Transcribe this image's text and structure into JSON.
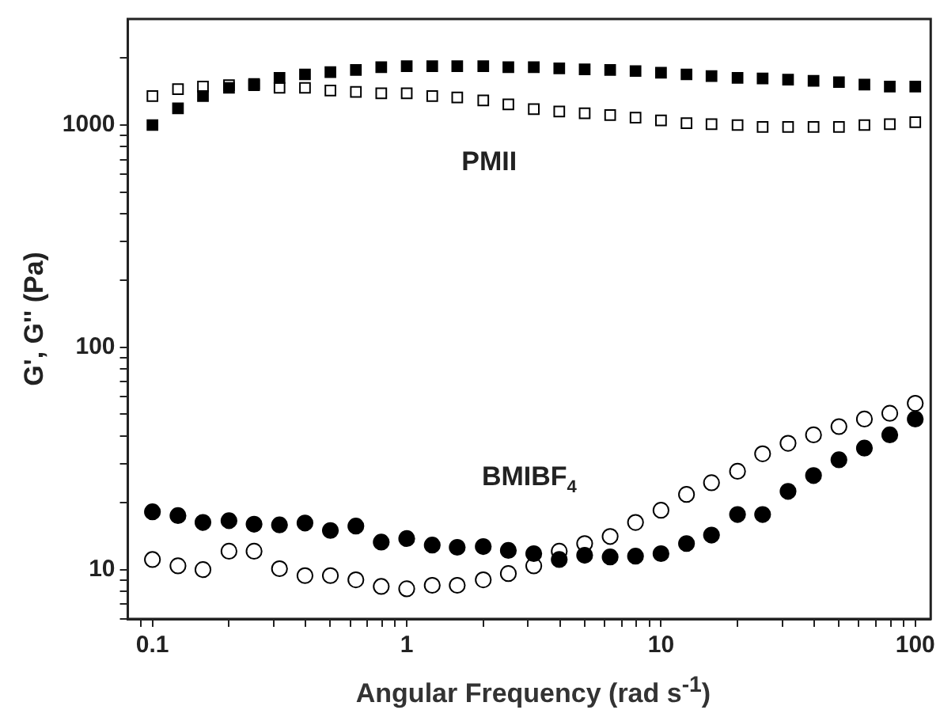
{
  "chart_data": {
    "type": "scatter",
    "xlabel": "Angular Frequency (rad s$^{-1}$)",
    "ylabel": "G', G'' (Pa)",
    "log": "xy",
    "grid": false,
    "legend": false,
    "xlim": [
      0.08,
      115
    ],
    "ylim": [
      6,
      3000
    ],
    "xticks": [
      {
        "value": 0.09,
        "label": null
      },
      0.1,
      {
        "value": 0.2,
        "label": null
      },
      {
        "value": 0.3,
        "label": null
      },
      {
        "value": 0.4,
        "label": null
      },
      {
        "value": 0.5,
        "label": null
      },
      {
        "value": 0.6,
        "label": null
      },
      {
        "value": 0.7,
        "label": null
      },
      {
        "value": 0.8,
        "label": null
      },
      {
        "value": 0.9,
        "label": null
      },
      1,
      {
        "value": 2,
        "label": null
      },
      {
        "value": 3,
        "label": null
      },
      {
        "value": 4,
        "label": null
      },
      {
        "value": 5,
        "label": null
      },
      {
        "value": 6,
        "label": null
      },
      {
        "value": 7,
        "label": null
      },
      {
        "value": 8,
        "label": null
      },
      {
        "value": 9,
        "label": null
      },
      10,
      {
        "value": 20,
        "label": null
      },
      {
        "value": 30,
        "label": null
      },
      {
        "value": 40,
        "label": null
      },
      {
        "value": 50,
        "label": null
      },
      {
        "value": 60,
        "label": null
      },
      {
        "value": 70,
        "label": null
      },
      {
        "value": 80,
        "label": null
      },
      {
        "value": 90,
        "label": null
      },
      100
    ],
    "yticks": [
      {
        "value": 6,
        "label": null
      },
      {
        "value": 7,
        "label": null
      },
      {
        "value": 8,
        "label": null
      },
      {
        "value": 9,
        "label": null
      },
      10,
      {
        "value": 20,
        "label": null
      },
      {
        "value": 30,
        "label": null
      },
      {
        "value": 40,
        "label": null
      },
      {
        "value": 50,
        "label": null
      },
      {
        "value": 60,
        "label": null
      },
      {
        "value": 70,
        "label": null
      },
      {
        "value": 80,
        "label": null
      },
      {
        "value": 90,
        "label": null
      },
      100,
      {
        "value": 200,
        "label": null
      },
      {
        "value": 300,
        "label": null
      },
      {
        "value": 400,
        "label": null
      },
      {
        "value": 500,
        "label": null
      },
      {
        "value": 600,
        "label": null
      },
      {
        "value": 700,
        "label": null
      },
      {
        "value": 800,
        "label": null
      },
      {
        "value": 900,
        "label": null
      },
      1000,
      {
        "value": 2000,
        "label": null
      }
    ],
    "x": [
      0.1,
      0.126,
      0.158,
      0.2,
      0.251,
      0.316,
      0.398,
      0.501,
      0.631,
      0.794,
      1,
      1.26,
      1.58,
      2,
      2.51,
      3.16,
      3.98,
      5.01,
      6.31,
      7.94,
      10,
      12.6,
      15.8,
      20,
      25.1,
      31.6,
      39.8,
      50.1,
      63.1,
      79.4,
      100
    ],
    "series": [
      {
        "color": "#000000",
        "marker": "square",
        "values": [
          1000,
          1190,
          1350,
          1470,
          1530,
          1630,
          1690,
          1730,
          1770,
          1820,
          1840,
          1840,
          1840,
          1840,
          1820,
          1820,
          1800,
          1780,
          1770,
          1750,
          1720,
          1690,
          1660,
          1630,
          1620,
          1600,
          1580,
          1560,
          1520,
          1490,
          1490
        ]
      },
      {
        "color": "#000000",
        "marker": "square",
        "values": [
          1350,
          1450,
          1490,
          1510,
          1510,
          1470,
          1470,
          1430,
          1410,
          1390,
          1390,
          1350,
          1330,
          1290,
          1240,
          1180,
          1150,
          1130,
          1110,
          1080,
          1050,
          1020,
          1010,
          1000,
          980,
          980,
          980,
          980,
          1000,
          1010,
          1030
        ]
      },
      {
        "color": "#000000",
        "marker": "circle",
        "values": [
          18.2,
          17.5,
          16.3,
          16.6,
          16.0,
          15.9,
          16.2,
          15.0,
          15.7,
          13.3,
          13.8,
          12.9,
          12.6,
          12.7,
          12.2,
          11.8,
          11.1,
          11.6,
          11.4,
          11.5,
          11.8,
          13.1,
          14.3,
          17.7,
          17.7,
          22.5,
          26.5,
          31.2,
          35.2,
          40.4,
          47.6
        ]
      },
      {
        "color": "#000000",
        "marker": "circle",
        "values": [
          11.1,
          10.4,
          10.0,
          12.1,
          12.1,
          10.1,
          9.4,
          9.4,
          9.0,
          8.4,
          8.2,
          8.5,
          8.5,
          9.0,
          9.6,
          10.4,
          12.1,
          13.1,
          14.1,
          16.3,
          18.5,
          21.8,
          24.6,
          27.7,
          33.2,
          37.0,
          40.4,
          44.0,
          47.6,
          50.5,
          56.0
        ]
      }
    ],
    "annotations": [
      "PMII",
      "BMIBF$_{4}$"
    ]
  }
}
